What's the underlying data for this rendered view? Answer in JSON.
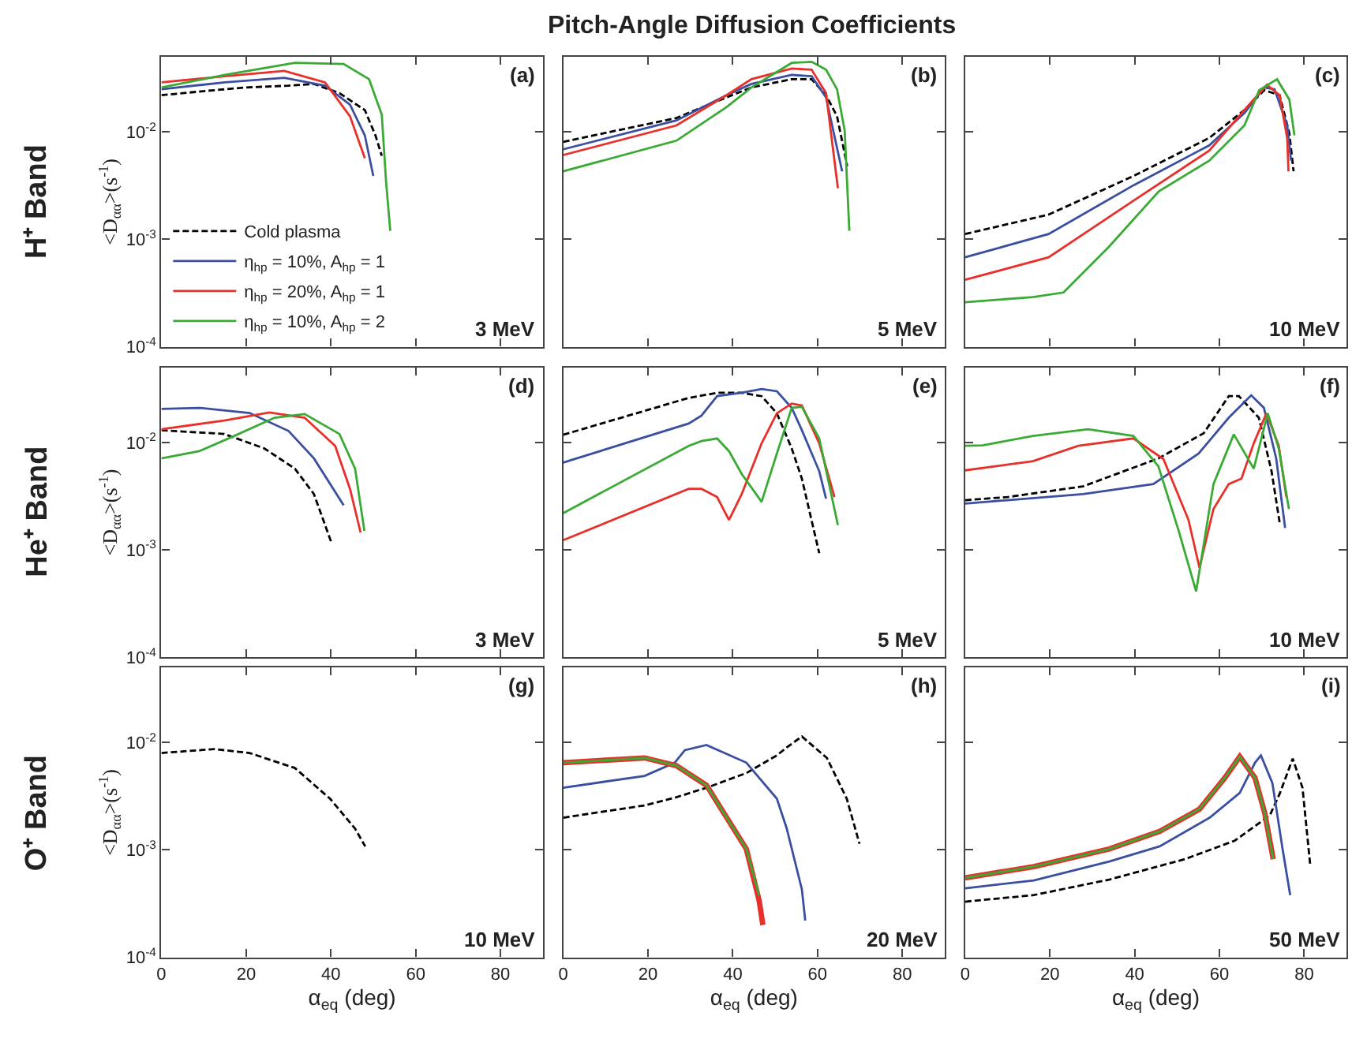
{
  "chart_data": [
    {
      "type": "line",
      "ylabel": "<D$_{αα}$>(s$^{-1}$)",
      "annotations": [
        "(a)",
        "3 MeV",
        "H⁺ Band"
      ],
      "legend": "bottom left",
      "tick_labels": "y",
      "xlim": [
        0,
        90
      ],
      "xticks": [
        0,
        20,
        40,
        60,
        80
      ],
      "ylim": [
        0.0001,
        0.05
      ],
      "yticks": [
        {
          "value": 0.0001,
          "label": "10$^{-4}$"
        },
        {
          "value": 0.001,
          "label": "10$^{-3}$"
        },
        {
          "value": 0.01,
          "label": "10$^{-2}$"
        }
      ],
      "log": true,
      "series": [
        {
          "name": "Cold plasma",
          "color": "#000000",
          "line_style": "dashed",
          "x": [
            0,
            10,
            20,
            30,
            36,
            42,
            48,
            50.5,
            52
          ],
          "values": [
            0.022,
            0.024,
            0.026,
            0.027,
            0.028,
            0.023,
            0.016,
            0.0093,
            0.006
          ]
        },
        {
          "name": "η$_{hp}$ = 10%, A$_{hp}$ = 1",
          "color": "#3a4fa0",
          "line_style": "solid",
          "x": [
            0,
            15,
            29,
            38.6,
            44.5,
            48,
            50
          ],
          "values": [
            0.025,
            0.029,
            0.032,
            0.027,
            0.018,
            0.0093,
            0.0039
          ]
        },
        {
          "name": "η$_{hp}$ = 20%, A$_{hp}$ = 1",
          "color": "#e8302a",
          "line_style": "solid",
          "x": [
            0,
            15,
            29,
            38.6,
            44.5,
            48
          ],
          "values": [
            0.029,
            0.033,
            0.037,
            0.029,
            0.014,
            0.0057
          ]
        },
        {
          "name": "η$_{hp}$ = 10%, A$_{hp}$ = 2",
          "color": "#3aaa35",
          "line_style": "solid",
          "x": [
            0,
            15,
            31.5,
            43,
            49,
            52,
            53,
            54
          ],
          "values": [
            0.026,
            0.034,
            0.044,
            0.043,
            0.031,
            0.0145,
            0.0035,
            0.0012
          ]
        }
      ]
    },
    {
      "type": "line",
      "title": "Pitch-Angle Diffusion Coefficients",
      "annotations": [
        "(b)",
        "5 MeV"
      ],
      "tick_labels": false,
      "xlim": [
        0,
        90
      ],
      "xticks": [
        0,
        20,
        40,
        60,
        80
      ],
      "ylim": [
        0.0001,
        0.05
      ],
      "yticks": [
        {
          "value": 0.0001,
          "label": "10$^{-4}$"
        },
        {
          "value": 0.001,
          "label": "10$^{-3}$"
        },
        {
          "value": 0.01,
          "label": "10$^{-2}$"
        }
      ],
      "log": true,
      "series": [
        {
          "color": "#000000",
          "line_style": "dashed",
          "x": [
            0,
            26.7,
            38.5,
            44.4,
            53.9,
            58.6,
            62,
            64.6,
            67
          ],
          "values": [
            0.0081,
            0.0135,
            0.021,
            0.026,
            0.031,
            0.031,
            0.022,
            0.014,
            0.0048
          ]
        },
        {
          "color": "#3a4fa0",
          "line_style": "solid",
          "x": [
            0,
            26.7,
            38.5,
            44.4,
            53.9,
            58.6,
            62,
            65.8
          ],
          "values": [
            0.0069,
            0.0128,
            0.022,
            0.028,
            0.034,
            0.033,
            0.021,
            0.0043
          ]
        },
        {
          "color": "#e8302a",
          "line_style": "solid",
          "x": [
            0,
            26.7,
            38.5,
            44.4,
            53.9,
            58.6,
            62,
            64.8
          ],
          "values": [
            0.0061,
            0.0115,
            0.022,
            0.031,
            0.039,
            0.038,
            0.023,
            0.003
          ]
        },
        {
          "color": "#3aaa35",
          "line_style": "solid",
          "x": [
            0,
            26.7,
            38.5,
            44.4,
            53.9,
            58.6,
            62,
            64.6,
            66.4,
            67.5
          ],
          "values": [
            0.0043,
            0.0083,
            0.017,
            0.026,
            0.044,
            0.045,
            0.038,
            0.025,
            0.0103,
            0.0012
          ]
        }
      ]
    },
    {
      "type": "line",
      "annotations": [
        "(c)",
        "10 MeV"
      ],
      "tick_labels": false,
      "xlim": [
        0,
        90
      ],
      "xticks": [
        0,
        20,
        40,
        60,
        80
      ],
      "ylim": [
        0.0001,
        0.05
      ],
      "yticks": [
        {
          "value": 0.0001,
          "label": "10$^{-4}$"
        },
        {
          "value": 0.001,
          "label": "10$^{-3}$"
        },
        {
          "value": 0.01,
          "label": "10$^{-2}$"
        }
      ],
      "log": true,
      "series": [
        {
          "color": "#000000",
          "line_style": "dashed",
          "x": [
            0,
            19.7,
            39.8,
            57.6,
            65.9,
            70.6,
            74.2,
            76.5,
            77.5
          ],
          "values": [
            0.00112,
            0.0017,
            0.0039,
            0.0088,
            0.016,
            0.0245,
            0.022,
            0.0097,
            0.0043
          ]
        },
        {
          "color": "#3a4fa0",
          "line_style": "solid",
          "x": [
            0,
            19.7,
            39.8,
            57.6,
            65.9,
            70.6,
            73,
            76,
            76.9
          ],
          "values": [
            0.00068,
            0.00112,
            0.0032,
            0.0075,
            0.015,
            0.026,
            0.025,
            0.0115,
            0.0054
          ]
        },
        {
          "color": "#e8302a",
          "line_style": "solid",
          "x": [
            0,
            19.7,
            39.8,
            57.6,
            65.9,
            71.2,
            74.2,
            76,
            76.3
          ],
          "values": [
            0.00042,
            0.00068,
            0.0023,
            0.0067,
            0.016,
            0.0275,
            0.022,
            0.0087,
            0.0043
          ]
        },
        {
          "color": "#3aaa35",
          "line_style": "solid",
          "x": [
            0,
            16,
            23.2,
            33.9,
            45.7,
            57.6,
            65.9,
            69.4,
            73.6,
            76.5,
            77.7
          ],
          "values": [
            0.00026,
            0.00029,
            0.00032,
            0.00085,
            0.0028,
            0.0054,
            0.0115,
            0.0245,
            0.031,
            0.02,
            0.0093
          ]
        }
      ]
    },
    {
      "type": "line",
      "ylabel": "<D$_{αα}$>(s$^{-1}$)",
      "annotations": [
        "(d)",
        "3 MeV",
        "He⁺ Band"
      ],
      "tick_labels": "y",
      "xlim": [
        0,
        90
      ],
      "xticks": [
        0,
        20,
        40,
        60,
        80
      ],
      "ylim": [
        0.0001,
        0.05
      ],
      "yticks": [
        {
          "value": 0.0001,
          "label": "10$^{-4}$"
        },
        {
          "value": 0.001,
          "label": "10$^{-3}$"
        },
        {
          "value": 0.01,
          "label": "10$^{-2}$"
        }
      ],
      "log": true,
      "series": [
        {
          "color": "#000000",
          "line_style": "dashed",
          "x": [
            0,
            14.8,
            24.3,
            31.5,
            36,
            40
          ],
          "values": [
            0.013,
            0.012,
            0.0088,
            0.0057,
            0.0033,
            0.0012
          ]
        },
        {
          "color": "#3a4fa0",
          "line_style": "solid",
          "x": [
            0,
            8.9,
            20.8,
            30,
            36,
            43
          ],
          "values": [
            0.0205,
            0.021,
            0.0188,
            0.0128,
            0.0071,
            0.0026
          ]
        },
        {
          "color": "#e8302a",
          "line_style": "solid",
          "x": [
            0,
            14.8,
            25.5,
            33.8,
            41,
            44.5,
            47
          ],
          "values": [
            0.0133,
            0.016,
            0.019,
            0.017,
            0.0093,
            0.0037,
            0.00145
          ]
        },
        {
          "color": "#3aaa35",
          "line_style": "solid",
          "x": [
            0,
            8.9,
            17.2,
            26.7,
            33.8,
            42,
            45.7,
            47.9
          ],
          "values": [
            0.0071,
            0.0083,
            0.0115,
            0.017,
            0.0184,
            0.012,
            0.0057,
            0.0015
          ]
        }
      ]
    },
    {
      "type": "line",
      "annotations": [
        "(e)",
        "5 MeV"
      ],
      "tick_labels": false,
      "xlim": [
        0,
        90
      ],
      "xticks": [
        0,
        20,
        40,
        60,
        80
      ],
      "ylim": [
        0.0001,
        0.05
      ],
      "yticks": [
        {
          "value": 0.0001,
          "label": "10$^{-4}$"
        },
        {
          "value": 0.001,
          "label": "10$^{-3}$"
        },
        {
          "value": 0.01,
          "label": "10$^{-2}$"
        }
      ],
      "log": true,
      "series": [
        {
          "color": "#000000",
          "line_style": "dashed",
          "x": [
            0,
            29.6,
            36.3,
            42.1,
            46.8,
            50.4,
            53.9,
            56.3,
            60.4
          ],
          "values": [
            0.0118,
            0.026,
            0.029,
            0.029,
            0.027,
            0.0187,
            0.0088,
            0.0046,
            0.00093
          ]
        },
        {
          "color": "#3a4fa0",
          "line_style": "solid",
          "x": [
            0,
            29.6,
            32.6,
            36.3,
            42.1,
            46.8,
            50.4,
            53.9,
            56.3,
            60.4,
            62
          ],
          "values": [
            0.0065,
            0.015,
            0.0178,
            0.027,
            0.029,
            0.0315,
            0.03,
            0.021,
            0.013,
            0.0054,
            0.003
          ]
        },
        {
          "color": "#e8302a",
          "line_style": "solid",
          "x": [
            0,
            29.6,
            32.6,
            36.3,
            39.1,
            42.1,
            46.8,
            50.4,
            53.9,
            56.3,
            60.4,
            64
          ],
          "values": [
            0.00123,
            0.0037,
            0.0037,
            0.0031,
            0.0019,
            0.0033,
            0.0098,
            0.0187,
            0.023,
            0.0221,
            0.0098,
            0.0031
          ]
        },
        {
          "color": "#3aaa35",
          "line_style": "solid",
          "x": [
            0,
            29.6,
            32.6,
            36.3,
            39.1,
            42.1,
            46.8,
            50.4,
            53.9,
            56.3,
            60.4,
            64.8
          ],
          "values": [
            0.0022,
            0.0093,
            0.0103,
            0.0109,
            0.0083,
            0.0051,
            0.0028,
            0.0079,
            0.021,
            0.0215,
            0.0109,
            0.0017
          ]
        }
      ]
    },
    {
      "type": "line",
      "annotations": [
        "(f)",
        "10 MeV"
      ],
      "tick_labels": false,
      "xlim": [
        0,
        90
      ],
      "xticks": [
        0,
        20,
        40,
        60,
        80
      ],
      "ylim": [
        0.0001,
        0.05
      ],
      "yticks": [
        {
          "value": 0.0001,
          "label": "10$^{-4}$"
        },
        {
          "value": 0.001,
          "label": "10$^{-3}$"
        },
        {
          "value": 0.01,
          "label": "10$^{-2}$"
        }
      ],
      "log": true,
      "series": [
        {
          "color": "#000000",
          "line_style": "dashed",
          "x": [
            0,
            10,
            27.8,
            45.6,
            56.3,
            62.2,
            64.6,
            69.3,
            72.3,
            74.3
          ],
          "values": [
            0.0029,
            0.0031,
            0.0039,
            0.0071,
            0.0122,
            0.027,
            0.027,
            0.017,
            0.0054,
            0.0017
          ]
        },
        {
          "color": "#3a4fa0",
          "line_style": "solid",
          "x": [
            0,
            27.8,
            44.4,
            55.1,
            62.2,
            67.5,
            70.5,
            73.4,
            75.5
          ],
          "values": [
            0.0027,
            0.0033,
            0.0041,
            0.0079,
            0.017,
            0.0275,
            0.021,
            0.0071,
            0.0016
          ]
        },
        {
          "color": "#e8302a",
          "line_style": "solid",
          "x": [
            0,
            16,
            26.7,
            39.7,
            46.8,
            52.7,
            55.3,
            58.6,
            62.2,
            65.2,
            68.1,
            71.1,
            74,
            75.8
          ],
          "values": [
            0.0055,
            0.0067,
            0.0093,
            0.0109,
            0.007,
            0.0019,
            0.00068,
            0.0024,
            0.0041,
            0.0046,
            0.0098,
            0.0187,
            0.0093,
            0.0031
          ]
        },
        {
          "color": "#3aaa35",
          "line_style": "solid",
          "x": [
            0,
            4.1,
            16,
            29,
            39.7,
            45.6,
            50.4,
            54.5,
            58.6,
            63.4,
            68.1,
            71.4,
            74,
            76.4
          ],
          "values": [
            0.0093,
            0.0094,
            0.0115,
            0.0133,
            0.0115,
            0.006,
            0.0015,
            0.00041,
            0.0041,
            0.0119,
            0.0057,
            0.0187,
            0.0088,
            0.0024
          ]
        }
      ]
    },
    {
      "type": "line",
      "xlabel": "α$_{eq}$ (deg)",
      "ylabel": "<D$_{αα}$>(s$^{-1}$)",
      "annotations": [
        "(g)",
        "10 MeV",
        "O⁺ Band"
      ],
      "xlim": [
        0,
        90
      ],
      "xticks": [
        0,
        20,
        40,
        60,
        80
      ],
      "ylim": [
        0.0001,
        0.05
      ],
      "yticks": [
        {
          "value": 0.0001,
          "label": "10$^{-4}$"
        },
        {
          "value": 0.001,
          "label": "10$^{-3}$"
        },
        {
          "value": 0.01,
          "label": "10$^{-2}$"
        }
      ],
      "log": true,
      "series": [
        {
          "color": "#000000",
          "line_style": "dashed",
          "x": [
            0,
            12.5,
            20.8,
            31.5,
            39.8,
            45.7,
            48.1
          ],
          "values": [
            0.008,
            0.0087,
            0.008,
            0.0058,
            0.003,
            0.00158,
            0.00108
          ]
        }
      ]
    },
    {
      "type": "line",
      "xlabel": "α$_{eq}$ (deg)",
      "annotations": [
        "(h)",
        "20 MeV"
      ],
      "tick_labels": "x",
      "xlim": [
        0,
        90
      ],
      "xticks": [
        0,
        20,
        40,
        60,
        80
      ],
      "ylim": [
        0.0001,
        0.05
      ],
      "yticks": [
        {
          "value": 0.0001,
          "label": "10$^{-4}$"
        },
        {
          "value": 0.001,
          "label": "10$^{-3}$"
        },
        {
          "value": 0.01,
          "label": "10$^{-2}$"
        }
      ],
      "log": true,
      "series": [
        {
          "color": "#000000",
          "line_style": "dashed",
          "x": [
            0,
            19.2,
            26.7,
            33.8,
            43.2,
            50.4,
            52.7,
            56.3,
            62.2,
            66.9,
            69.9
          ],
          "values": [
            0.002,
            0.0026,
            0.0031,
            0.0038,
            0.0052,
            0.0076,
            0.009,
            0.0114,
            0.0072,
            0.003,
            0.00114
          ]
        },
        {
          "color": "#3a4fa0",
          "line_style": "solid",
          "x": [
            0,
            19.2,
            26.3,
            28.7,
            33.8,
            43.2,
            50.4,
            52.7,
            56.3,
            57.1
          ],
          "values": [
            0.0038,
            0.0049,
            0.0065,
            0.0085,
            0.0095,
            0.0065,
            0.003,
            0.0016,
            0.00043,
            0.00022
          ]
        },
        {
          "color": "#e8302a",
          "line_style": "solid",
          "x": [
            0,
            19.2,
            26.7,
            33.8,
            43.2,
            46.2,
            47.1
          ],
          "values": [
            0.0065,
            0.0072,
            0.0061,
            0.004,
            0.00102,
            0.00034,
            0.0002
          ]
        },
        {
          "color": "#3aaa35",
          "line_style": "solid",
          "x": [
            0,
            19.2,
            26.7,
            33.8,
            43.2,
            46.2
          ],
          "values": [
            0.0065,
            0.0072,
            0.0061,
            0.004,
            0.00102,
            0.00038
          ]
        }
      ]
    },
    {
      "type": "line",
      "xlabel": "α$_{eq}$ (deg)",
      "annotations": [
        "(i)",
        "50 MeV"
      ],
      "tick_labels": "x",
      "xlim": [
        0,
        90
      ],
      "xticks": [
        0,
        20,
        40,
        60,
        80
      ],
      "ylim": [
        0.0001,
        0.05
      ],
      "yticks": [
        {
          "value": 0.0001,
          "label": "10$^{-4}$"
        },
        {
          "value": 0.001,
          "label": "10$^{-3}$"
        },
        {
          "value": 0.01,
          "label": "10$^{-2}$"
        }
      ],
      "log": true,
      "series": [
        {
          "color": "#000000",
          "line_style": "dashed",
          "x": [
            0,
            16.2,
            34,
            51.8,
            63.6,
            71.9,
            74.3,
            77.3,
            79.6,
            81.4
          ],
          "values": [
            0.00033,
            0.00038,
            0.00053,
            0.00082,
            0.00122,
            0.0021,
            0.0034,
            0.0071,
            0.0038,
            0.00074
          ]
        },
        {
          "color": "#3a4fa0",
          "line_style": "solid",
          "x": [
            0,
            16.2,
            34,
            45.9,
            57.7,
            64.8,
            68.4,
            69.8,
            72.5,
            74.9,
            76.7
          ],
          "values": [
            0.00044,
            0.00052,
            0.00078,
            0.00108,
            0.002,
            0.0034,
            0.0065,
            0.0076,
            0.0042,
            0.00102,
            0.00038
          ]
        },
        {
          "color": "#e8302a",
          "line_style": "solid",
          "x": [
            0,
            16.2,
            34,
            45.9,
            55.3,
            61.3,
            64.8,
            68.4,
            70.7,
            72.7
          ],
          "values": [
            0.00055,
            0.0007,
            0.00102,
            0.00149,
            0.0024,
            0.0047,
            0.0074,
            0.0047,
            0.0022,
            0.00082
          ]
        },
        {
          "color": "#3aaa35",
          "line_style": "solid",
          "x": [
            0,
            16.2,
            34,
            45.9,
            55.3,
            61.3,
            64.8,
            68.4,
            70.7,
            72.7
          ],
          "values": [
            0.00055,
            0.0007,
            0.00102,
            0.00149,
            0.0024,
            0.0047,
            0.0074,
            0.0047,
            0.0022,
            0.00082
          ]
        }
      ]
    }
  ]
}
